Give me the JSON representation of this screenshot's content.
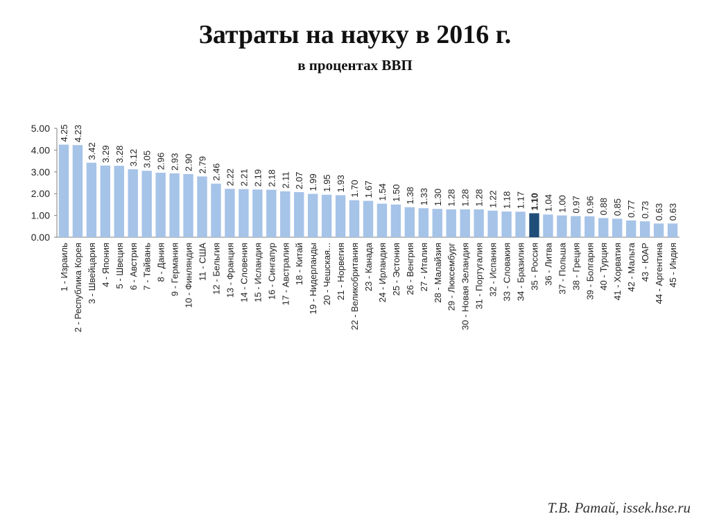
{
  "title": "Затраты на науку в 2016 г.",
  "subtitle": "в процентах ВВП",
  "footer": "Т.В. Ратай, issek.hse.ru",
  "colors": {
    "bar": "#a6c3e8",
    "highlight": "#1f4e79",
    "axis": "#7f7f7f"
  },
  "chart_data": {
    "type": "bar",
    "ylim": [
      0,
      5
    ],
    "yticks": [
      "0.00",
      "1.00",
      "2.00",
      "3.00",
      "4.00",
      "5.00"
    ],
    "highlight_index": 34,
    "categories": [
      "1 - Израиль",
      "2 - Республика Корея",
      "3 - Швейцария",
      "4 - Япония",
      "5 - Швеция",
      "6 - Австрия",
      "7 - Тайвань",
      "8 - Дания",
      "9 - Германия",
      "10 - Финляндия",
      "11 - США",
      "12 - Бельгия",
      "13 - Франция",
      "14 - Словения",
      "15 - Исландия",
      "16 - Сингапур",
      "17 - Австралия",
      "18 - Китай",
      "19 - Нидерланды",
      "20 - Чешская...",
      "21 - Норвегия",
      "22 - Великобритания",
      "23 - Канада",
      "24 - Ирландия",
      "25 - Эстония",
      "26 - Венгрия",
      "27 - Италия",
      "28 - Малайзия",
      "29 - Люксембург",
      "30 - Новая Зеландия",
      "31 - Португалия",
      "32 - Испания",
      "33 - Словакия",
      "34 - Бразилия",
      "35 - Россия",
      "36 - Литва",
      "37 - Польша",
      "38 - Греция",
      "39 - Болгария",
      "40 - Турция",
      "41 - Хорватия",
      "42 - Мальта",
      "43 - ЮАР",
      "44 - Аргентина",
      "45 - Индия"
    ],
    "labels": [
      "4.25",
      "4.23",
      "3.42",
      "3.29",
      "3.28",
      "3.12",
      "3.05",
      "2.96",
      "2.93",
      "2.90",
      "2.79",
      "2.46",
      "2.22",
      "2.21",
      "2.19",
      "2.18",
      "2.11",
      "2.07",
      "1.99",
      "1.95",
      "1.93",
      "1.70",
      "1.67",
      "1.54",
      "1.50",
      "1.38",
      "1.33",
      "1.30",
      "1.28",
      "1.28",
      "1.28",
      "1.22",
      "1.18",
      "1.17",
      "1.10",
      "1.04",
      "1.00",
      "0.97",
      "0.96",
      "0.88",
      "0.85",
      "0.77",
      "0.73",
      "0.63",
      "0.63"
    ],
    "values": [
      4.25,
      4.23,
      3.42,
      3.29,
      3.28,
      3.12,
      3.05,
      2.96,
      2.93,
      2.9,
      2.79,
      2.46,
      2.22,
      2.21,
      2.19,
      2.18,
      2.11,
      2.07,
      1.99,
      1.95,
      1.93,
      1.7,
      1.67,
      1.54,
      1.5,
      1.38,
      1.33,
      1.3,
      1.28,
      1.28,
      1.28,
      1.22,
      1.18,
      1.17,
      1.1,
      1.04,
      1.0,
      0.97,
      0.96,
      0.88,
      0.85,
      0.77,
      0.73,
      0.63,
      0.63
    ]
  }
}
